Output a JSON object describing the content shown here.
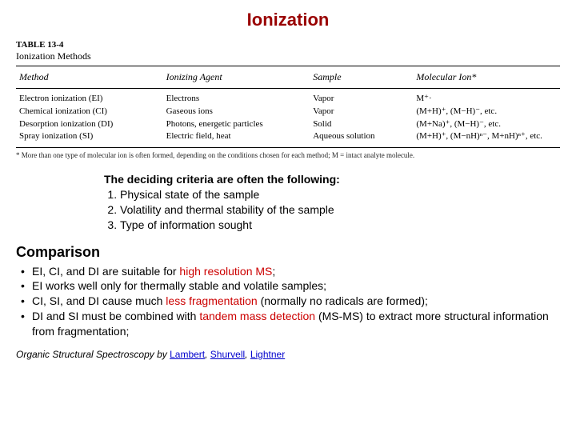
{
  "title": "Ionization",
  "table": {
    "label": "TABLE 13-4",
    "subtitle": "Ionization Methods",
    "headers": [
      "Method",
      "Ionizing Agent",
      "Sample",
      "Molecular Ion*"
    ],
    "rows": [
      [
        "Electron ionization (EI)",
        "Electrons",
        "Vapor",
        "M⁺·"
      ],
      [
        "Chemical ionization (CI)",
        "Gaseous ions",
        "Vapor",
        "(M+H)⁺, (M−H)⁻, etc."
      ],
      [
        "Desorption ionization (DI)",
        "Photons, energetic particles",
        "Solid",
        "(M+Na)⁺, (M−H)⁻, etc."
      ],
      [
        "Spray ionization (SI)",
        "Electric field, heat",
        "Aqueous solution",
        "(M+H)⁺, (M−nH)ⁿ⁻, M+nH)ⁿ⁺, etc."
      ]
    ],
    "footnote": "* More than one type of molecular ion is often formed, depending on the conditions chosen for each method; M = intact analyte molecule.",
    "col_widths": [
      "27%",
      "27%",
      "19%",
      "27%"
    ]
  },
  "criteria": {
    "title": "The deciding criteria are often the following:",
    "items": [
      "Physical state of the sample",
      "Volatility and thermal stability of the sample",
      "Type of information sought"
    ]
  },
  "comparison": {
    "title": "Comparison",
    "bullets": [
      {
        "pre": "EI, CI, and DI are suitable for ",
        "hl": "high resolution MS",
        "post": ";"
      },
      {
        "pre": "EI works well only for thermally stable and volatile samples;",
        "hl": "",
        "post": ""
      },
      {
        "pre": "CI, SI, and DI cause much ",
        "hl": "less fragmentation",
        "post": " (normally no radicals are formed);"
      },
      {
        "pre": "DI and SI must be combined with ",
        "hl": "tandem mass detection",
        "post": " (MS-MS) to extract more structural information from fragmentation;"
      }
    ]
  },
  "citation": {
    "book": "Organic Structural Spectroscopy",
    "by": " by ",
    "authors": [
      "Lambert",
      "Shurvell",
      "Lightner"
    ]
  },
  "colors": {
    "title": "#990000",
    "highlight": "#cc0000",
    "link": "#0000cc",
    "text": "#000000",
    "background": "#ffffff"
  }
}
